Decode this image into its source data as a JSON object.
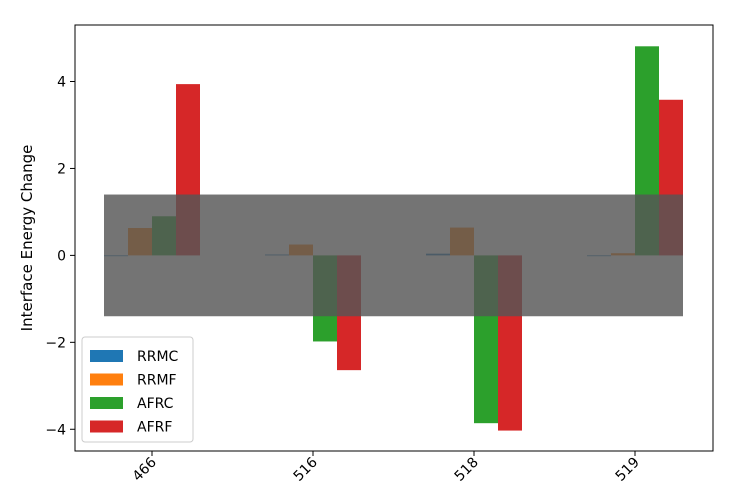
{
  "chart_data": {
    "type": "bar",
    "title": "",
    "xlabel": "",
    "ylabel": "Interface Energy Change",
    "categories": [
      "466",
      "516",
      "518",
      "519"
    ],
    "series": [
      {
        "name": "RRMC",
        "color": "#1f77b4",
        "values": [
          0.0,
          0.02,
          0.04,
          0.0
        ]
      },
      {
        "name": "RRMF",
        "color": "#ff7f0e",
        "values": [
          0.63,
          0.25,
          0.64,
          0.05
        ]
      },
      {
        "name": "AFRC",
        "color": "#2ca02c",
        "values": [
          0.9,
          -1.98,
          -3.86,
          4.81
        ]
      },
      {
        "name": "AFRF",
        "color": "#d62728",
        "values": [
          3.94,
          -2.64,
          -4.03,
          3.58
        ]
      }
    ],
    "ylim": [
      -4.5,
      5.3
    ],
    "yticks": [
      -4,
      -2,
      0,
      2,
      4
    ],
    "ytick_labels": [
      "−4",
      "−2",
      "0",
      "2",
      "4"
    ],
    "band": {
      "ymin": -1.4,
      "ymax": 1.4,
      "color": "#555555",
      "opacity": 0.82
    },
    "legend": "lower-left",
    "grid": false
  }
}
